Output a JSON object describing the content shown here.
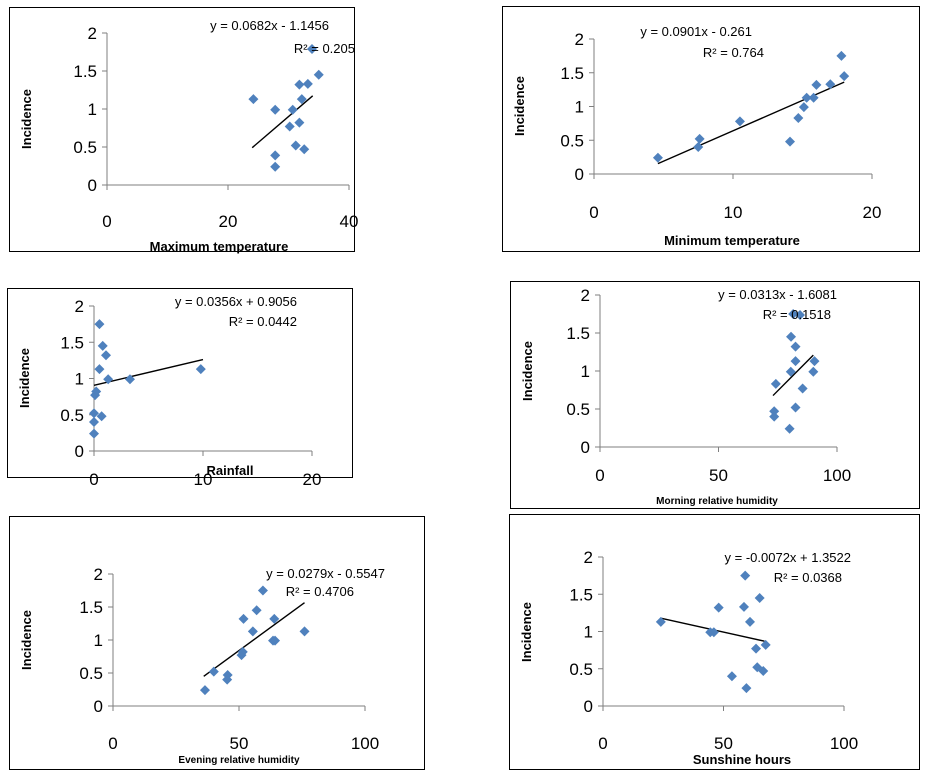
{
  "chart_data": [
    {
      "type": "scatter",
      "xlabel": "Maximum temperature",
      "ylabel": "Incidence",
      "xlim": [
        0,
        40
      ],
      "ylim": [
        0,
        2
      ],
      "xticks": [
        0,
        20,
        40
      ],
      "yticks": [
        0,
        0.5,
        1,
        1.5,
        2
      ],
      "equation": "y = 0.0682x - 1.1456",
      "r2": "R² = 0.205",
      "trend": {
        "slope": 0.0682,
        "intercept": -1.1456,
        "x_from": 24,
        "x_to": 34
      },
      "points": [
        [
          24.2,
          1.13
        ],
        [
          27.8,
          0.99
        ],
        [
          27.8,
          0.39
        ],
        [
          27.8,
          0.24
        ],
        [
          30.2,
          0.77
        ],
        [
          30.7,
          0.99
        ],
        [
          31.2,
          0.52
        ],
        [
          31.8,
          1.32
        ],
        [
          31.8,
          0.82
        ],
        [
          32.2,
          1.13
        ],
        [
          32.6,
          0.47
        ],
        [
          33.2,
          1.33
        ],
        [
          35.0,
          1.45
        ]
      ]
    },
    {
      "type": "scatter",
      "xlabel": "Minimum temperature",
      "ylabel": "Incidence",
      "xlim": [
        0,
        20
      ],
      "ylim": [
        0,
        2
      ],
      "xticks": [
        0,
        10,
        20
      ],
      "yticks": [
        0,
        0.5,
        1,
        1.5,
        2
      ],
      "equation": "y = 0.0901x - 0.261",
      "r2": "R² = 0.764",
      "trend": {
        "slope": 0.0901,
        "intercept": -0.261,
        "x_from": 4.6,
        "x_to": 18
      },
      "points": [
        [
          4.6,
          0.24
        ],
        [
          7.5,
          0.4
        ],
        [
          7.6,
          0.52
        ],
        [
          10.5,
          0.78
        ],
        [
          14.1,
          0.48
        ],
        [
          14.7,
          0.83
        ],
        [
          15.1,
          0.99
        ],
        [
          15.3,
          1.13
        ],
        [
          15.8,
          1.13
        ],
        [
          16.0,
          1.32
        ],
        [
          17.0,
          1.33
        ],
        [
          17.8,
          1.75
        ],
        [
          18.0,
          1.45
        ]
      ]
    },
    {
      "type": "scatter",
      "xlabel": "Rainfall",
      "ylabel": "Incidence",
      "xlim": [
        0,
        20
      ],
      "ylim": [
        0,
        2
      ],
      "xticks": [
        0,
        10,
        20
      ],
      "yticks": [
        0,
        0.5,
        1,
        1.5,
        2
      ],
      "equation": "y = 0.0356x + 0.9056",
      "r2": "R² = 0.0442",
      "trend": {
        "slope": 0.0356,
        "intercept": 0.9056,
        "x_from": 0,
        "x_to": 10
      },
      "points": [
        [
          0.0,
          0.24
        ],
        [
          0.0,
          0.4
        ],
        [
          0.0,
          0.52
        ],
        [
          0.1,
          0.77
        ],
        [
          0.2,
          0.82
        ],
        [
          0.5,
          1.75
        ],
        [
          0.5,
          1.13
        ],
        [
          0.7,
          0.48
        ],
        [
          0.8,
          1.45
        ],
        [
          1.1,
          1.32
        ],
        [
          1.3,
          0.99
        ],
        [
          3.3,
          0.99
        ],
        [
          9.8,
          1.13
        ]
      ]
    },
    {
      "type": "scatter",
      "xlabel": "Morning relative humidity",
      "ylabel": "Incidence",
      "xlim": [
        0,
        100
      ],
      "ylim": [
        0,
        2
      ],
      "xticks": [
        0,
        50,
        100
      ],
      "yticks": [
        0,
        0.5,
        1,
        1.5,
        2
      ],
      "equation": "y = 0.0313x - 1.6081",
      "r2": "R² = 0.1518",
      "trend": {
        "slope": 0.0313,
        "intercept": -1.6081,
        "x_from": 73,
        "x_to": 90
      },
      "points": [
        [
          73.5,
          0.4
        ],
        [
          73.5,
          0.47
        ],
        [
          74.2,
          0.83
        ],
        [
          80.0,
          0.24
        ],
        [
          80.5,
          0.99
        ],
        [
          80.6,
          1.45
        ],
        [
          81.5,
          1.75
        ],
        [
          82.5,
          1.32
        ],
        [
          82.5,
          1.13
        ],
        [
          82.5,
          0.52
        ],
        [
          85.5,
          0.77
        ],
        [
          90.0,
          0.99
        ],
        [
          90.5,
          1.13
        ]
      ]
    },
    {
      "type": "scatter",
      "xlabel": "Evening relative humidity",
      "ylabel": "Incidence",
      "xlim": [
        0,
        100
      ],
      "ylim": [
        0,
        2
      ],
      "xticks": [
        0,
        50,
        100
      ],
      "yticks": [
        0,
        0.5,
        1,
        1.5,
        2
      ],
      "equation": "y = 0.0279x - 0.5547",
      "r2": "R² = 0.4706",
      "trend": {
        "slope": 0.0279,
        "intercept": -0.5547,
        "x_from": 36,
        "x_to": 76
      },
      "points": [
        [
          36.5,
          0.24
        ],
        [
          40.0,
          0.52
        ],
        [
          45.3,
          0.4
        ],
        [
          45.5,
          0.47
        ],
        [
          51.0,
          0.77
        ],
        [
          51.5,
          0.82
        ],
        [
          51.8,
          1.32
        ],
        [
          55.5,
          1.13
        ],
        [
          57.0,
          1.45
        ],
        [
          59.5,
          1.75
        ],
        [
          63.5,
          0.99
        ],
        [
          64.0,
          1.32
        ],
        [
          64.3,
          0.99
        ],
        [
          76.0,
          1.13
        ]
      ]
    },
    {
      "type": "scatter",
      "xlabel": "Sunshine hours",
      "ylabel": "Incidence",
      "xlim": [
        0,
        100
      ],
      "ylim": [
        0,
        2
      ],
      "xticks": [
        0,
        50,
        100
      ],
      "yticks": [
        0,
        0.5,
        1,
        1.5,
        2
      ],
      "equation": "y = -0.0072x + 1.3522",
      "r2": "R² = 0.0368",
      "trend": {
        "slope": -0.0072,
        "intercept": 1.3522,
        "x_from": 24,
        "x_to": 67
      },
      "points": [
        [
          24.0,
          1.13
        ],
        [
          44.5,
          0.99
        ],
        [
          46.0,
          0.99
        ],
        [
          48.0,
          1.32
        ],
        [
          53.5,
          0.4
        ],
        [
          58.5,
          1.33
        ],
        [
          59.0,
          1.75
        ],
        [
          59.5,
          0.24
        ],
        [
          61.0,
          1.13
        ],
        [
          63.5,
          0.77
        ],
        [
          64.0,
          0.52
        ],
        [
          65.0,
          1.45
        ],
        [
          66.5,
          0.47
        ],
        [
          67.5,
          0.82
        ]
      ]
    }
  ]
}
